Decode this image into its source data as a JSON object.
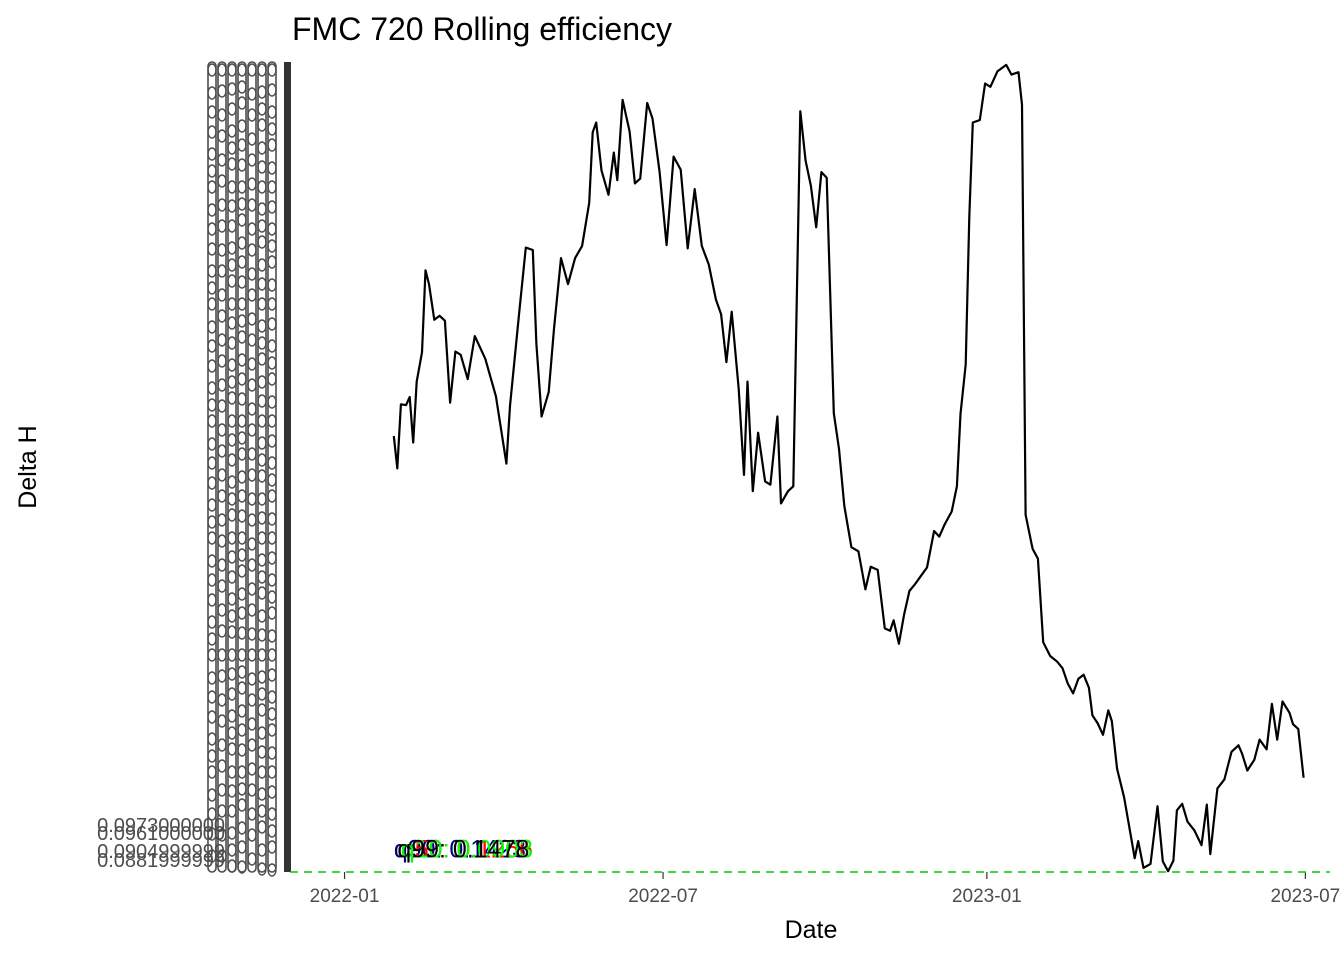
{
  "chart_data": {
    "type": "line",
    "title": "FMC 720 Rolling efficiency",
    "xlabel": "Date",
    "ylabel": "Delta H",
    "x_ticks": [
      "2022-01",
      "2022-07",
      "2023-01",
      "2023-07"
    ],
    "y_tick_labels_legible": [
      "0.0973000000",
      "0.0961000000",
      "0.0904999999",
      "0.0881999999"
    ],
    "y_tick_labels_note": "overlapping illegible tick labels",
    "x_range": [
      "2021-12-01",
      "2023-07-15"
    ],
    "y_range": [
      0,
      100
    ],
    "grid": false,
    "legend": "none",
    "series": [
      {
        "color": "#000000",
        "points": [
          [
            "2022-01-29",
            53.7
          ],
          [
            "2022-01-31",
            49.7
          ],
          [
            "2022-02-02",
            57.6
          ],
          [
            "2022-02-05",
            57.5
          ],
          [
            "2022-02-07",
            58.5
          ],
          [
            "2022-02-09",
            52.9
          ],
          [
            "2022-02-11",
            60.4
          ],
          [
            "2022-02-14",
            64.0
          ],
          [
            "2022-02-16",
            74.1
          ],
          [
            "2022-02-18",
            72.4
          ],
          [
            "2022-02-21",
            68.0
          ],
          [
            "2022-02-24",
            68.5
          ],
          [
            "2022-02-27",
            67.9
          ],
          [
            "2022-03-02",
            57.8
          ],
          [
            "2022-03-05",
            64.1
          ],
          [
            "2022-03-08",
            63.7
          ],
          [
            "2022-03-12",
            60.7
          ],
          [
            "2022-03-16",
            66.0
          ],
          [
            "2022-03-22",
            63.2
          ],
          [
            "2022-03-28",
            58.6
          ],
          [
            "2022-04-03",
            50.3
          ],
          [
            "2022-04-05",
            57.4
          ],
          [
            "2022-04-10",
            68.4
          ],
          [
            "2022-04-14",
            76.9
          ],
          [
            "2022-04-18",
            76.6
          ],
          [
            "2022-04-20",
            65.0
          ],
          [
            "2022-04-23",
            56.1
          ],
          [
            "2022-04-27",
            59.1
          ],
          [
            "2022-04-30",
            66.9
          ],
          [
            "2022-05-04",
            75.6
          ],
          [
            "2022-05-08",
            72.4
          ],
          [
            "2022-05-12",
            75.6
          ],
          [
            "2022-05-16",
            77.1
          ],
          [
            "2022-05-20",
            82.4
          ],
          [
            "2022-05-22",
            91.1
          ],
          [
            "2022-05-24",
            92.3
          ],
          [
            "2022-05-27",
            86.4
          ],
          [
            "2022-05-31",
            83.4
          ],
          [
            "2022-06-03",
            88.6
          ],
          [
            "2022-06-05",
            85.2
          ],
          [
            "2022-06-08",
            95.1
          ],
          [
            "2022-06-12",
            91.2
          ],
          [
            "2022-06-15",
            84.8
          ],
          [
            "2022-06-18",
            85.4
          ],
          [
            "2022-06-22",
            94.7
          ],
          [
            "2022-06-25",
            92.8
          ],
          [
            "2022-06-29",
            86.3
          ],
          [
            "2022-07-03",
            77.2
          ],
          [
            "2022-07-07",
            88.1
          ],
          [
            "2022-07-11",
            86.5
          ],
          [
            "2022-07-15",
            76.8
          ],
          [
            "2022-07-19",
            84.1
          ],
          [
            "2022-07-23",
            77.1
          ],
          [
            "2022-07-27",
            74.8
          ],
          [
            "2022-07-31",
            70.5
          ],
          [
            "2022-08-03",
            68.7
          ],
          [
            "2022-08-06",
            62.8
          ],
          [
            "2022-08-09",
            69.0
          ],
          [
            "2022-08-13",
            59.5
          ],
          [
            "2022-08-16",
            48.9
          ],
          [
            "2022-08-18",
            60.4
          ],
          [
            "2022-08-21",
            46.9
          ],
          [
            "2022-08-24",
            54.1
          ],
          [
            "2022-08-28",
            48.1
          ],
          [
            "2022-08-31",
            47.7
          ],
          [
            "2022-09-04",
            56.1
          ],
          [
            "2022-09-06",
            45.4
          ],
          [
            "2022-09-10",
            46.9
          ],
          [
            "2022-09-13",
            47.5
          ],
          [
            "2022-09-17",
            93.7
          ],
          [
            "2022-09-20",
            87.6
          ],
          [
            "2022-09-23",
            84.5
          ],
          [
            "2022-09-26",
            79.4
          ],
          [
            "2022-09-29",
            86.2
          ],
          [
            "2022-10-02",
            85.5
          ],
          [
            "2022-10-06",
            56.5
          ],
          [
            "2022-10-09",
            52.1
          ],
          [
            "2022-10-12",
            45.1
          ],
          [
            "2022-10-16",
            40.0
          ],
          [
            "2022-10-20",
            39.5
          ],
          [
            "2022-10-24",
            34.8
          ],
          [
            "2022-10-27",
            37.6
          ],
          [
            "2022-10-31",
            37.2
          ],
          [
            "2022-11-04",
            30.0
          ],
          [
            "2022-11-07",
            29.7
          ],
          [
            "2022-11-09",
            31.0
          ],
          [
            "2022-11-12",
            28.1
          ],
          [
            "2022-11-15",
            31.7
          ],
          [
            "2022-11-18",
            34.6
          ],
          [
            "2022-11-21",
            35.4
          ],
          [
            "2022-11-24",
            36.3
          ],
          [
            "2022-11-28",
            37.5
          ],
          [
            "2022-12-02",
            42.0
          ],
          [
            "2022-12-05",
            41.3
          ],
          [
            "2022-12-08",
            42.8
          ],
          [
            "2022-12-12",
            44.4
          ],
          [
            "2022-12-15",
            47.5
          ],
          [
            "2022-12-17",
            56.4
          ],
          [
            "2022-12-20",
            62.5
          ],
          [
            "2022-12-22",
            80.7
          ],
          [
            "2022-12-24",
            92.3
          ],
          [
            "2022-12-28",
            92.6
          ],
          [
            "2022-12-31",
            97.1
          ],
          [
            "2023-01-03",
            96.7
          ],
          [
            "2023-01-07",
            98.6
          ],
          [
            "2023-01-12",
            99.4
          ],
          [
            "2023-01-15",
            98.2
          ],
          [
            "2023-01-19",
            98.5
          ],
          [
            "2023-01-21",
            94.5
          ],
          [
            "2023-01-23",
            44.0
          ],
          [
            "2023-01-25",
            41.9
          ],
          [
            "2023-01-27",
            39.8
          ],
          [
            "2023-01-30",
            38.6
          ],
          [
            "2023-02-02",
            28.3
          ],
          [
            "2023-02-06",
            26.6
          ],
          [
            "2023-02-10",
            25.9
          ],
          [
            "2023-02-13",
            25.1
          ],
          [
            "2023-02-16",
            23.2
          ],
          [
            "2023-02-19",
            22.0
          ],
          [
            "2023-02-22",
            23.8
          ],
          [
            "2023-02-25",
            24.3
          ],
          [
            "2023-02-28",
            22.7
          ],
          [
            "2023-03-02",
            19.3
          ],
          [
            "2023-03-05",
            18.3
          ],
          [
            "2023-03-08",
            16.9
          ],
          [
            "2023-03-11",
            19.9
          ],
          [
            "2023-03-13",
            18.6
          ],
          [
            "2023-03-16",
            12.7
          ],
          [
            "2023-03-20",
            9.2
          ],
          [
            "2023-03-24",
            4.2
          ],
          [
            "2023-03-26",
            1.7
          ],
          [
            "2023-03-28",
            3.8
          ],
          [
            "2023-03-31",
            0.5
          ],
          [
            "2023-04-04",
            1.0
          ],
          [
            "2023-04-08",
            8.1
          ],
          [
            "2023-04-11",
            1.3
          ],
          [
            "2023-04-14",
            0.1
          ],
          [
            "2023-04-17",
            1.4
          ],
          [
            "2023-04-19",
            7.6
          ],
          [
            "2023-04-22",
            8.4
          ],
          [
            "2023-04-25",
            6.2
          ],
          [
            "2023-04-29",
            5.1
          ],
          [
            "2023-05-03",
            3.3
          ],
          [
            "2023-05-06",
            8.3
          ],
          [
            "2023-05-08",
            2.2
          ],
          [
            "2023-05-12",
            10.3
          ],
          [
            "2023-05-16",
            11.4
          ],
          [
            "2023-05-20",
            14.8
          ],
          [
            "2023-05-24",
            15.6
          ],
          [
            "2023-05-26",
            14.6
          ],
          [
            "2023-05-29",
            12.5
          ],
          [
            "2023-06-02",
            13.8
          ],
          [
            "2023-06-05",
            16.3
          ],
          [
            "2023-06-09",
            15.1
          ],
          [
            "2023-06-12",
            20.7
          ],
          [
            "2023-06-15",
            16.3
          ],
          [
            "2023-06-18",
            21.0
          ],
          [
            "2023-06-22",
            19.6
          ],
          [
            "2023-06-24",
            18.2
          ],
          [
            "2023-06-27",
            17.6
          ],
          [
            "2023-06-30",
            11.6
          ]
        ]
      }
    ],
    "reference_line": {
      "y": 0,
      "color": "#00cc00",
      "style": "dashed"
    },
    "annotations": [
      {
        "text": "q90: 0.1423",
        "color": "#000080",
        "x": "2022-01-29",
        "y": 1.8
      },
      {
        "text": "q50: 0.1266",
        "color": "#ff0000",
        "x": "2022-02-02",
        "y": 1.8
      },
      {
        "text": "q10: 0.0903",
        "color": "#00ff00",
        "x": "2022-02-02",
        "y": 1.8
      },
      {
        "text": "q99: 0.1478",
        "color": "#000000",
        "x": "2022-01-31",
        "y": 1.8
      }
    ]
  }
}
